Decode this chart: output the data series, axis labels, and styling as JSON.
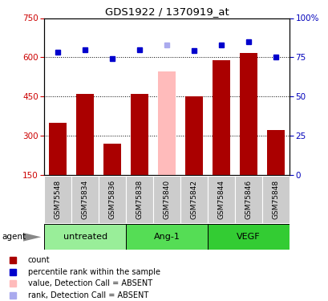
{
  "title": "GDS1922 / 1370919_at",
  "samples": [
    "GSM75548",
    "GSM75834",
    "GSM75836",
    "GSM75838",
    "GSM75840",
    "GSM75842",
    "GSM75844",
    "GSM75846",
    "GSM75848"
  ],
  "bar_values": [
    350,
    460,
    270,
    460,
    545,
    450,
    590,
    615,
    320
  ],
  "bar_colors": [
    "#aa0000",
    "#aa0000",
    "#aa0000",
    "#aa0000",
    "#ffbbbb",
    "#aa0000",
    "#aa0000",
    "#aa0000",
    "#aa0000"
  ],
  "dot_values": [
    78,
    80,
    74,
    80,
    83,
    79,
    83,
    85,
    75
  ],
  "dot_colors": [
    "#0000cc",
    "#0000cc",
    "#0000cc",
    "#0000cc",
    "#aaaaee",
    "#0000cc",
    "#0000cc",
    "#0000cc",
    "#0000cc"
  ],
  "groups": [
    {
      "label": "untreated",
      "start": 0,
      "end": 3,
      "color": "#99ee99"
    },
    {
      "label": "Ang-1",
      "start": 3,
      "end": 6,
      "color": "#55dd55"
    },
    {
      "label": "VEGF",
      "start": 6,
      "end": 9,
      "color": "#33cc33"
    }
  ],
  "ylim_left": [
    150,
    750
  ],
  "ylim_right": [
    0,
    100
  ],
  "yticks_left": [
    150,
    300,
    450,
    600,
    750
  ],
  "yticks_right": [
    0,
    25,
    50,
    75,
    100
  ],
  "ytick_labels_right": [
    "0",
    "25",
    "50",
    "75",
    "100%"
  ],
  "grid_values": [
    300,
    450,
    600
  ],
  "left_axis_color": "#cc0000",
  "right_axis_color": "#0000bb",
  "agent_label": "agent",
  "legend_items": [
    {
      "label": "count",
      "color": "#aa0000",
      "facecolor": "#aa0000"
    },
    {
      "label": "percentile rank within the sample",
      "color": "#0000cc",
      "facecolor": "#0000cc"
    },
    {
      "label": "value, Detection Call = ABSENT",
      "color": "#ffbbbb",
      "facecolor": "#ffbbbb"
    },
    {
      "label": "rank, Detection Call = ABSENT",
      "color": "#aaaaee",
      "facecolor": "#aaaaee"
    }
  ]
}
